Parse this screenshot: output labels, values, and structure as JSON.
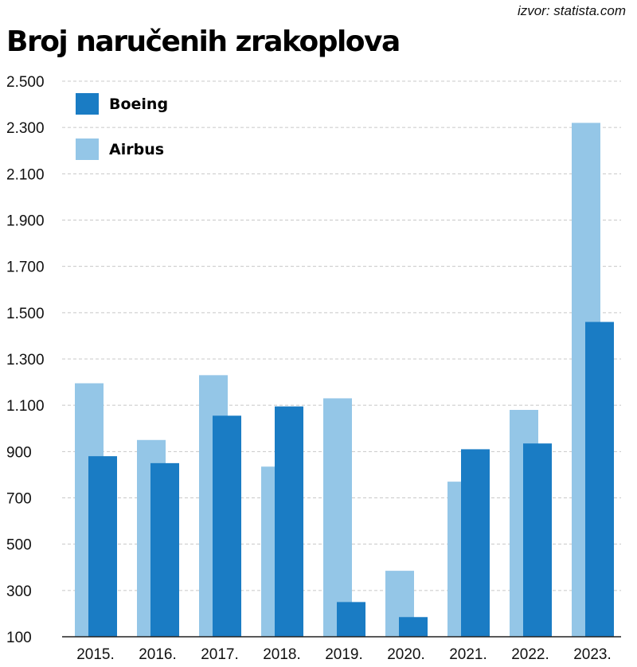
{
  "source": "izvor: statista.com",
  "title": "Broj naručenih zrakoplova",
  "colors": {
    "boeing": "#1a7cc4",
    "airbus": "#94c6e7",
    "grid": "#c8c8c8"
  },
  "chart_data": {
    "type": "bar",
    "title": "Broj naručenih zrakoplova",
    "xlabel": "",
    "ylabel": "",
    "categories": [
      "2015.",
      "2016.",
      "2017.",
      "2018.",
      "2019.",
      "2020.",
      "2021.",
      "2022.",
      "2023."
    ],
    "series": [
      {
        "name": "Boeing",
        "values": [
          880,
          850,
          1055,
          1095,
          250,
          185,
          910,
          935,
          1460
        ]
      },
      {
        "name": "Airbus",
        "values": [
          1195,
          950,
          1230,
          835,
          1130,
          385,
          770,
          1080,
          2320
        ]
      }
    ],
    "ylim": [
      100,
      2500
    ],
    "yticks": [
      "100",
      "300",
      "500",
      "700",
      "900",
      "1.100",
      "1.300",
      "1.500",
      "1.700",
      "1.900",
      "2.100",
      "2.300",
      "2.500"
    ],
    "grid": true,
    "legend_position": "top-left"
  }
}
